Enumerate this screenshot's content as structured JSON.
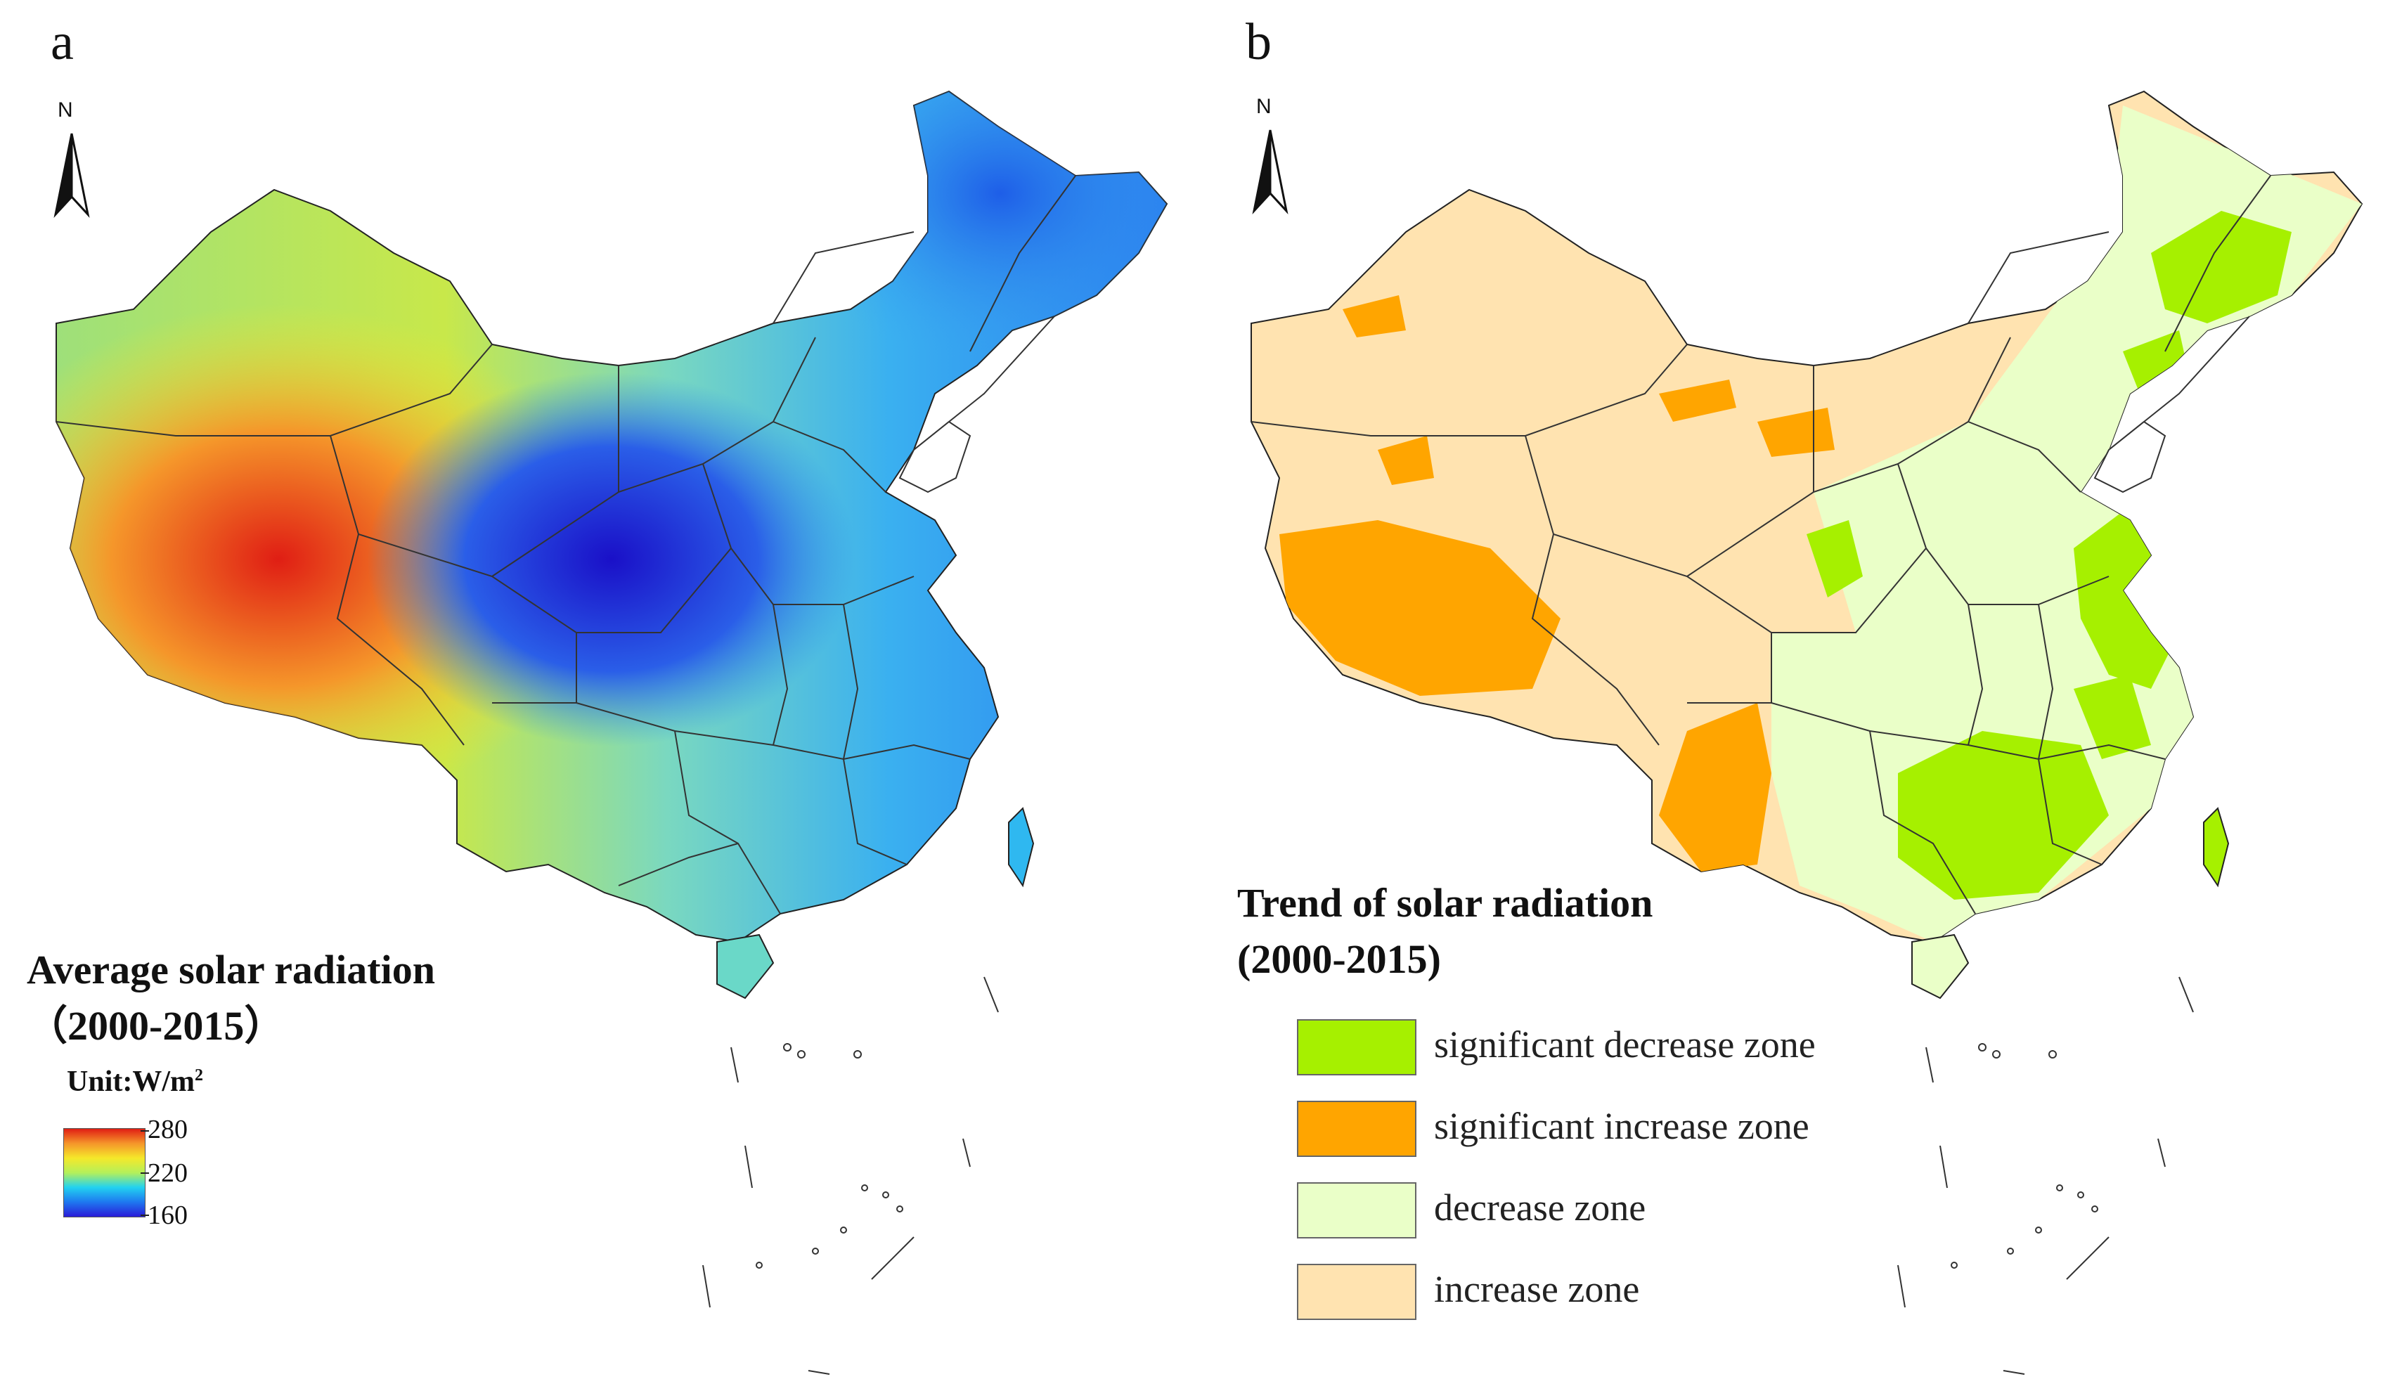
{
  "panel_a": {
    "letter": "a",
    "north_label": "N",
    "legend": {
      "title_line1": "Average solar radiation",
      "title_line2": "（2000-2015）",
      "unit_text": "Unit:W/m",
      "unit_sup": "2",
      "ticks": [
        "280",
        "220",
        "160"
      ],
      "colormap": [
        "#2a1cd8",
        "#1e78f0",
        "#22d2f0",
        "#b4f05a",
        "#f5e82a",
        "#f5962a",
        "#e01e14"
      ]
    }
  },
  "panel_b": {
    "letter": "b",
    "north_label": "N",
    "legend": {
      "title_line1": "Trend of solar radiation",
      "title_line2": "(2000-2015)",
      "items": [
        {
          "label": "significant decrease zone",
          "color": "#a6f000"
        },
        {
          "label": "significant increase zone",
          "color": "#ffa500"
        },
        {
          "label": "decrease zone",
          "color": "#eaffc8"
        },
        {
          "label": "increase zone",
          "color": "#ffe3b0"
        }
      ]
    }
  }
}
